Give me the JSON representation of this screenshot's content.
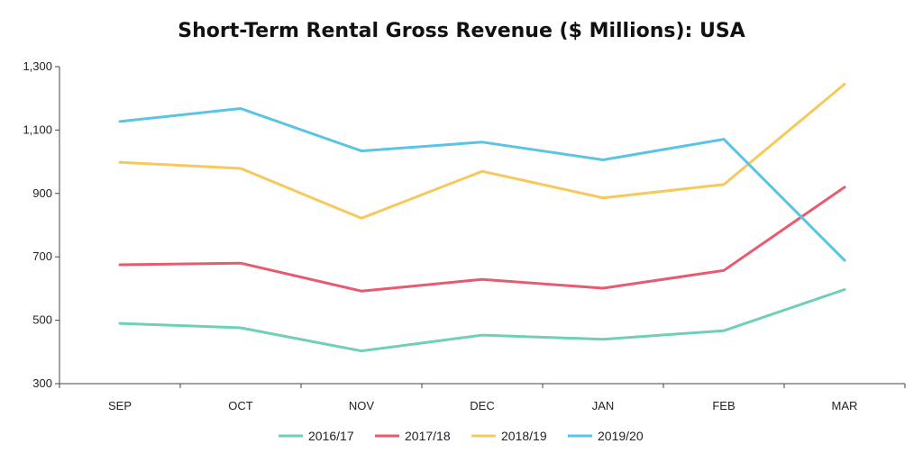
{
  "chart_data": {
    "type": "line",
    "title": "Short-Term Rental Gross Revenue ($ Millions): USA",
    "xlabel": "",
    "ylabel": "",
    "categories": [
      "SEP",
      "OCT",
      "NOV",
      "DEC",
      "JAN",
      "FEB",
      "MAR"
    ],
    "ylim": [
      300,
      1300
    ],
    "yticks": [
      300,
      500,
      700,
      900,
      1100,
      1300
    ],
    "ytick_labels": [
      "300",
      "500",
      "700",
      "900",
      "1,100",
      "1,300"
    ],
    "grid": false,
    "legend_position": "bottom",
    "series": [
      {
        "name": "2016/17",
        "color": "#6fcfb7",
        "values": [
          490,
          476,
          403,
          453,
          440,
          467,
          597
        ]
      },
      {
        "name": "2017/18",
        "color": "#e85a6f",
        "values": [
          675,
          680,
          592,
          629,
          601,
          657,
          920
        ]
      },
      {
        "name": "2018/19",
        "color": "#f7c95c",
        "values": [
          998,
          979,
          822,
          970,
          886,
          928,
          1245
        ]
      },
      {
        "name": "2019/20",
        "color": "#5bc3e6",
        "values": [
          1127,
          1168,
          1034,
          1062,
          1006,
          1071,
          689
        ]
      }
    ]
  }
}
